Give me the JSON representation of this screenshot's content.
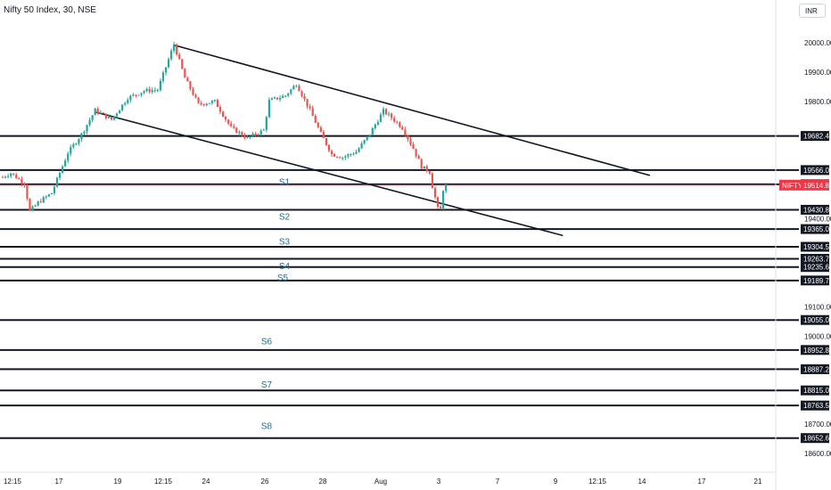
{
  "header": {
    "title": "Nifty 50 Index, 30, NSE",
    "currency_button": "INR"
  },
  "chart_data": {
    "type": "candlestick",
    "symbol": "NIFTY",
    "last_price": 19514.8,
    "y_range": [
      18590,
      20030
    ],
    "y_ticks": [
      20000,
      19900,
      19800,
      19400,
      19100,
      19000,
      18700,
      18600
    ],
    "x_ticks": [
      "12:15",
      "17",
      "19",
      "12:15",
      "24",
      "26",
      "28",
      "Aug",
      "3",
      "7",
      "9",
      "12:15",
      "14",
      "17",
      "21"
    ],
    "levels": [
      19682.4,
      19566.05,
      19517.65,
      19430.8,
      19365.0,
      19304.5,
      19263.7,
      19235.65,
      19189.75,
      19055.0,
      18952.85,
      18887.25,
      18815.05,
      18763.5,
      18652.6
    ],
    "support_labels": [
      {
        "name": "S1",
        "price": 19528
      },
      {
        "name": "S2",
        "price": 19409
      },
      {
        "name": "S3",
        "price": 19324
      },
      {
        "name": "S4",
        "price": 19241
      },
      {
        "name": "S5",
        "price": 19201
      },
      {
        "name": "S6",
        "price": 18984
      },
      {
        "name": "S7",
        "price": 18837
      },
      {
        "name": "S8",
        "price": 18696
      }
    ],
    "trendlines": [
      {
        "start": {
          "bar": 63,
          "price": 19992
        },
        "end": {
          "bar": 238,
          "price": 19548
        }
      },
      {
        "start": {
          "bar": 34,
          "price": 19764
        },
        "end": {
          "bar": 206,
          "price": 19343
        }
      }
    ],
    "colors": {
      "up": "#26a69a",
      "down": "#ef5350",
      "level": "#131722",
      "price_tag": "#f23645",
      "support_text": "#2a6a8c"
    }
  }
}
